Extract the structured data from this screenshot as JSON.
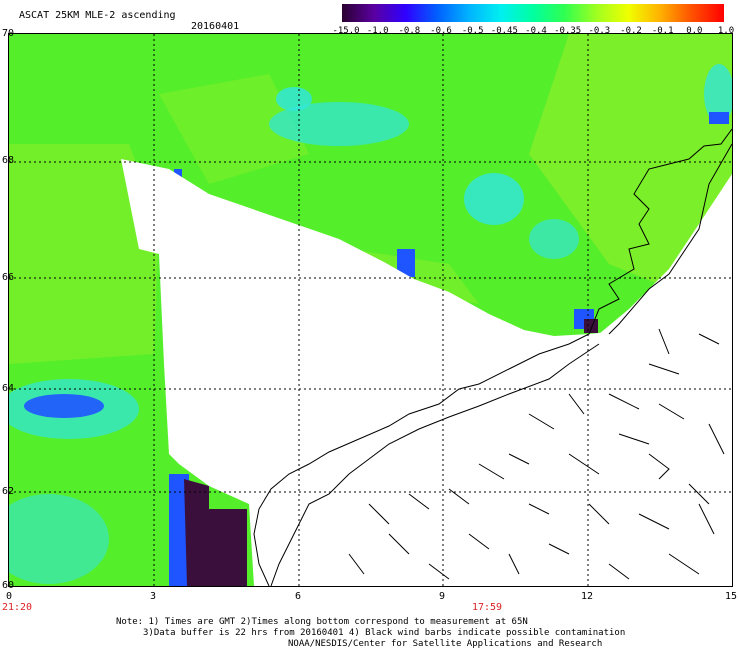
{
  "header": {
    "title": "ASCAT 25KM MLE-2 ascending",
    "date": "20160401"
  },
  "colorbar": {
    "labels": [
      "-15.0",
      "-1.0",
      "-0.8",
      "-0.6",
      "-0.5",
      "-0.45",
      "-0.4",
      "-0.35",
      "-0.3",
      "-0.2",
      "-0.1",
      "0.0",
      "1.0"
    ],
    "colors": [
      "#2a0030",
      "#5a00a0",
      "#2f00ff",
      "#0060ff",
      "#00b4ff",
      "#00f0f0",
      "#00ffa0",
      "#30ff50",
      "#a0ff20",
      "#f0ff00",
      "#ffb000",
      "#ff5000",
      "#ff0000"
    ]
  },
  "axes": {
    "y_labels": [
      "70",
      "68",
      "66",
      "64",
      "62",
      "60"
    ],
    "x_labels": [
      "0",
      "3",
      "6",
      "9",
      "12",
      "15"
    ],
    "time_labels": [
      "21:20",
      "17:59"
    ]
  },
  "notes": {
    "line1": "Note: 1) Times are GMT 2)Times along bottom correspond to measurement at 65N",
    "line2": "3)Data buffer is 22 hrs from 20160401 4) Black wind barbs indicate possible contamination",
    "line3": "NOAA/NESDIS/Center for Satellite Applications and Research"
  },
  "map": {
    "longitude_range": [
      0,
      15
    ],
    "latitude_range": [
      60,
      70
    ],
    "field_colors": {
      "background": "#55ee2a",
      "light_green": "#8cf02a",
      "cyan": "#33e6d8",
      "blue": "#1f55ff",
      "purple": "#3a0f3c",
      "no_data": "#ffffff",
      "coast": "#000000"
    }
  }
}
